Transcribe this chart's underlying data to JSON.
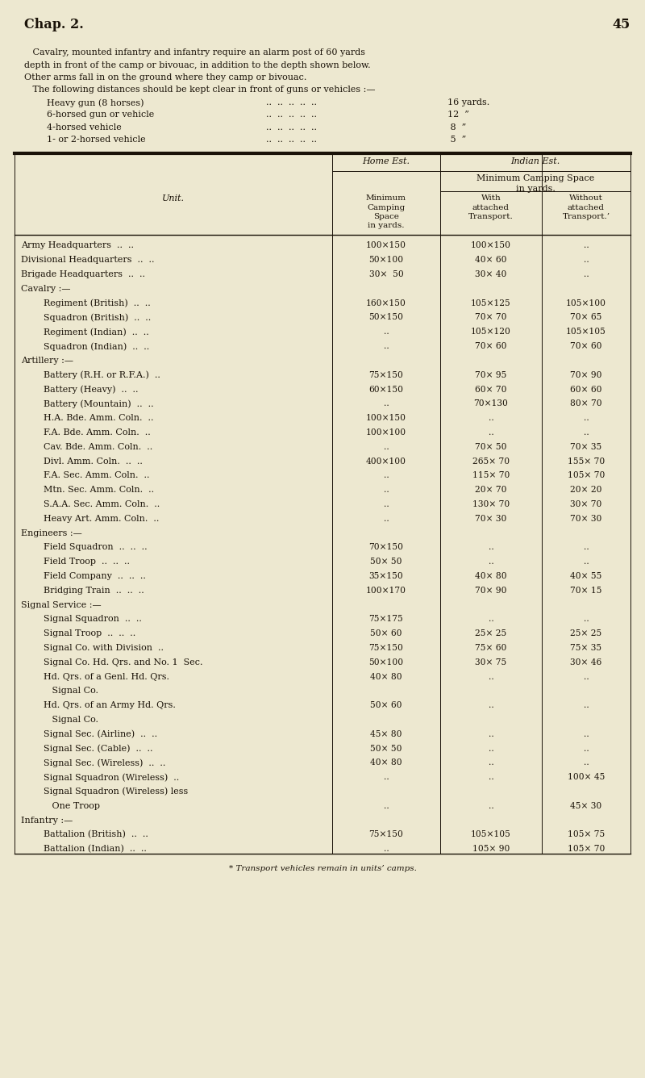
{
  "bg_color": "#ede8d0",
  "text_color": "#1a1208",
  "chapter_header": "Chap. 2.",
  "page_number": "45",
  "intro_lines": [
    "   Cavalry, mounted infantry and infantry require an alarm post of 60 yards",
    "depth in front of the camp or bivouac, in addition to the depth shown below.",
    "Other arms fall in on the ground where they camp or bivouac.",
    "   The following distances should be kept clear in front of guns or vehicles :—"
  ],
  "gun_items": [
    [
      "Heavy gun (8 horses)",
      "16 yards."
    ],
    [
      "6-horsed gun or vehicle",
      "12  ”"
    ],
    [
      "4-horsed vehicle",
      " 8  ”"
    ],
    [
      "1- or 2-horsed vehicle",
      " 5  ”"
    ]
  ],
  "rows": [
    {
      "unit": "Army Headquarters  ..  ..",
      "indent": 0,
      "section": false,
      "h1": "100×150",
      "h2": "100×150",
      "h3": ".."
    },
    {
      "unit": "Divisional Headquarters  ..  ..",
      "indent": 0,
      "section": false,
      "h1": "50×100",
      "h2": "40× 60",
      "h3": ".."
    },
    {
      "unit": "Brigade Headquarters  ..  ..",
      "indent": 0,
      "section": false,
      "h1": "30×  50",
      "h2": "30× 40",
      "h3": ".."
    },
    {
      "unit": "Cavalry :—",
      "indent": 0,
      "section": true,
      "h1": "",
      "h2": "",
      "h3": ""
    },
    {
      "unit": "Regiment (British)  ..  ..",
      "indent": 1,
      "section": false,
      "h1": "160×150",
      "h2": "105×125",
      "h3": "105×100"
    },
    {
      "unit": "Squadron (British)  ..  ..",
      "indent": 1,
      "section": false,
      "h1": "50×150",
      "h2": "70× 70",
      "h3": "70× 65"
    },
    {
      "unit": "Regiment (Indian)  ..  ..",
      "indent": 1,
      "section": false,
      "h1": "..",
      "h2": "105×120",
      "h3": "105×105"
    },
    {
      "unit": "Squadron (Indian)  ..  ..",
      "indent": 1,
      "section": false,
      "h1": "..",
      "h2": "70× 60",
      "h3": "70× 60"
    },
    {
      "unit": "Artillery :—",
      "indent": 0,
      "section": true,
      "h1": "",
      "h2": "",
      "h3": ""
    },
    {
      "unit": "Battery (R.H. or R.F.A.)  ..",
      "indent": 1,
      "section": false,
      "h1": "75×150",
      "h2": "70× 95",
      "h3": "70× 90"
    },
    {
      "unit": "Battery (Heavy)  ..  ..",
      "indent": 1,
      "section": false,
      "h1": "60×150",
      "h2": "60× 70",
      "h3": "60× 60"
    },
    {
      "unit": "Battery (Mountain)  ..  ..",
      "indent": 1,
      "section": false,
      "h1": "..",
      "h2": "70×130",
      "h3": "80× 70"
    },
    {
      "unit": "H.A. Bde. Amm. Coln.  ..",
      "indent": 1,
      "section": false,
      "h1": "100×150",
      "h2": "..",
      "h3": ".."
    },
    {
      "unit": "F.A. Bde. Amm. Coln.  ..",
      "indent": 1,
      "section": false,
      "h1": "100×100",
      "h2": "..",
      "h3": ".."
    },
    {
      "unit": "Cav. Bde. Amm. Coln.  ..",
      "indent": 1,
      "section": false,
      "h1": "..",
      "h2": "70× 50",
      "h3": "70× 35"
    },
    {
      "unit": "Divl. Amm. Coln.  ..  ..",
      "indent": 1,
      "section": false,
      "h1": "400×100",
      "h2": "265× 70",
      "h3": "155× 70"
    },
    {
      "unit": "F.A. Sec. Amm. Coln.  ..",
      "indent": 1,
      "section": false,
      "h1": "..",
      "h2": "115× 70",
      "h3": "105× 70"
    },
    {
      "unit": "Mtn. Sec. Amm. Coln.  ..",
      "indent": 1,
      "section": false,
      "h1": "..",
      "h2": "20× 70",
      "h3": "20× 20"
    },
    {
      "unit": "S.A.A. Sec. Amm. Coln.  ..",
      "indent": 1,
      "section": false,
      "h1": "..",
      "h2": "130× 70",
      "h3": "30× 70"
    },
    {
      "unit": "Heavy Art. Amm. Coln.  ..",
      "indent": 1,
      "section": false,
      "h1": "..",
      "h2": "70× 30",
      "h3": "70× 30"
    },
    {
      "unit": "Engineers :—",
      "indent": 0,
      "section": true,
      "h1": "",
      "h2": "",
      "h3": ""
    },
    {
      "unit": "Field Squadron  ..  ..  ..",
      "indent": 1,
      "section": false,
      "h1": "70×150",
      "h2": "..",
      "h3": ".."
    },
    {
      "unit": "Field Troop  ..  ..  ..",
      "indent": 1,
      "section": false,
      "h1": "50× 50",
      "h2": "..",
      "h3": ".."
    },
    {
      "unit": "Field Company  ..  ..  ..",
      "indent": 1,
      "section": false,
      "h1": "35×150",
      "h2": "40× 80",
      "h3": "40× 55"
    },
    {
      "unit": "Bridging Train  ..  ..  ..",
      "indent": 1,
      "section": false,
      "h1": "100×170",
      "h2": "70× 90",
      "h3": "70× 15"
    },
    {
      "unit": "Signal Service :—",
      "indent": 0,
      "section": true,
      "h1": "",
      "h2": "",
      "h3": ""
    },
    {
      "unit": "Signal Squadron  ..  ..",
      "indent": 1,
      "section": false,
      "h1": "75×175",
      "h2": "..",
      "h3": ".."
    },
    {
      "unit": "Signal Troop  ..  ..  ..",
      "indent": 1,
      "section": false,
      "h1": "50× 60",
      "h2": "25× 25",
      "h3": "25× 25"
    },
    {
      "unit": "Signal Co. with Division  ..",
      "indent": 1,
      "section": false,
      "h1": "75×150",
      "h2": "75× 60",
      "h3": "75× 35"
    },
    {
      "unit": "Signal Co. Hd. Qrs. and No. 1  Sec.",
      "indent": 1,
      "section": false,
      "h1": "50×100",
      "h2": "30× 75",
      "h3": "30× 46"
    },
    {
      "unit": "Hd. Qrs. of a Genl. Hd. Qrs.",
      "indent": 1,
      "section": false,
      "h1": "40× 80",
      "h2": "..",
      "h3": ".."
    },
    {
      "unit": "   Signal Co.",
      "indent": 1,
      "section": false,
      "h1": "",
      "h2": "",
      "h3": ""
    },
    {
      "unit": "Hd. Qrs. of an Army Hd. Qrs.",
      "indent": 1,
      "section": false,
      "h1": "50× 60",
      "h2": "..",
      "h3": ".."
    },
    {
      "unit": "   Signal Co.",
      "indent": 1,
      "section": false,
      "h1": "",
      "h2": "",
      "h3": ""
    },
    {
      "unit": "Signal Sec. (Airline)  ..  ..",
      "indent": 1,
      "section": false,
      "h1": "45× 80",
      "h2": "..",
      "h3": ".."
    },
    {
      "unit": "Signal Sec. (Cable)  ..  ..",
      "indent": 1,
      "section": false,
      "h1": "50× 50",
      "h2": "..",
      "h3": ".."
    },
    {
      "unit": "Signal Sec. (Wireless)  ..  ..",
      "indent": 1,
      "section": false,
      "h1": "40× 80",
      "h2": "..",
      "h3": ".."
    },
    {
      "unit": "Signal Squadron (Wireless)  ..",
      "indent": 1,
      "section": false,
      "h1": "..",
      "h2": "..",
      "h3": "100× 45"
    },
    {
      "unit": "Signal Squadron (Wireless) less",
      "indent": 1,
      "section": false,
      "h1": "",
      "h2": "",
      "h3": ""
    },
    {
      "unit": "   One Troop",
      "indent": 1,
      "section": false,
      "h1": "..",
      "h2": "..",
      "h3": "45× 30"
    },
    {
      "unit": "Infantry :—",
      "indent": 0,
      "section": true,
      "h1": "",
      "h2": "",
      "h3": ""
    },
    {
      "unit": "Battalion (British)  ..  ..",
      "indent": 1,
      "section": false,
      "h1": "75×150",
      "h2": "105×105",
      "h3": "105× 75"
    },
    {
      "unit": "Battalion (Indian)  ..  ..",
      "indent": 1,
      "section": false,
      "h1": "..",
      "h2": "105× 90",
      "h3": "105× 70"
    }
  ],
  "footer": "* Transport vehicles remain in units’ camps."
}
